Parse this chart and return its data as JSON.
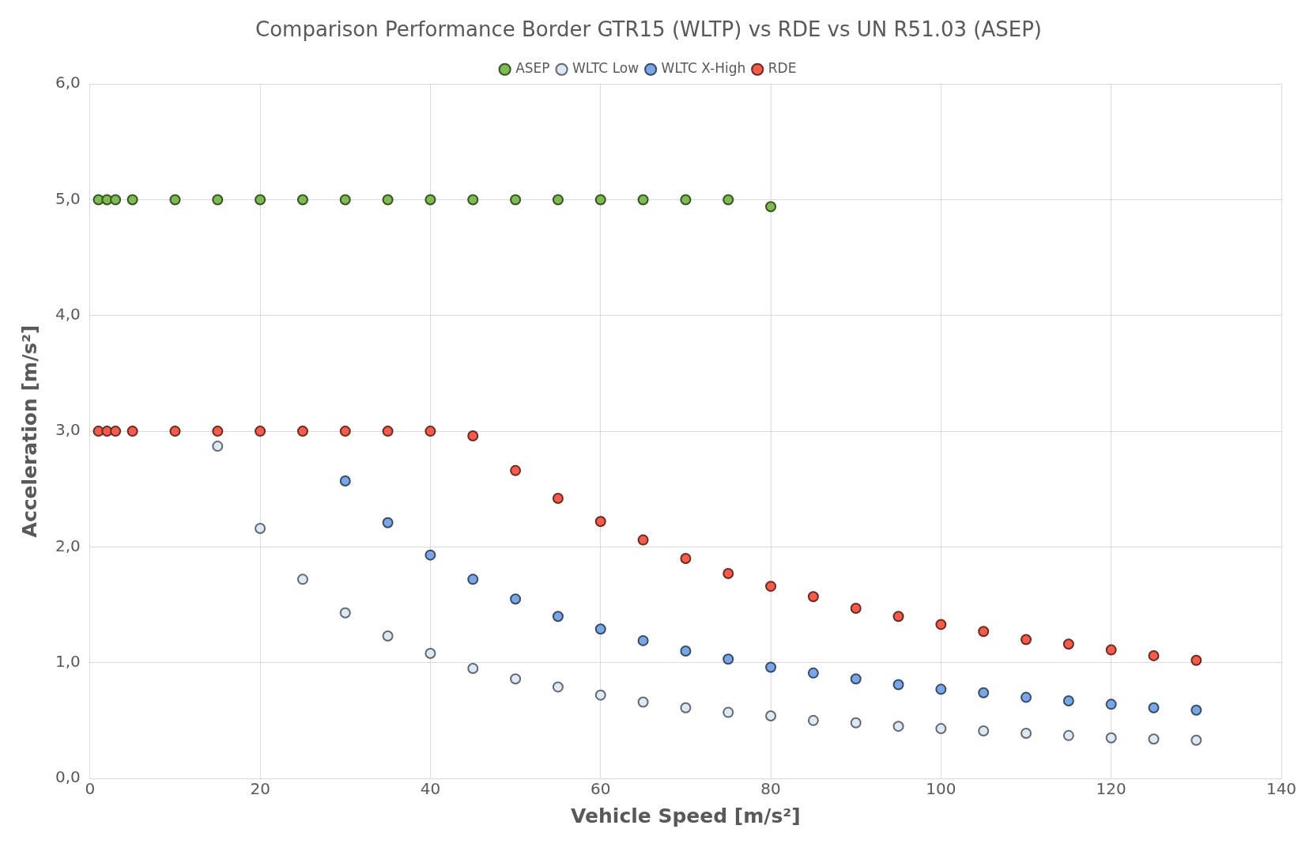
{
  "chart_data": {
    "type": "scatter",
    "title": "Comparison Performance Border GTR15 (WLTP) vs RDE vs UN R51.03 (ASEP)",
    "xlabel": "Vehicle Speed [m/s²]",
    "ylabel": "Acceleration [m/s²]",
    "xlim": [
      0,
      140
    ],
    "xticks": [
      0,
      20,
      40,
      60,
      80,
      100,
      120,
      140
    ],
    "ylim": [
      0,
      6
    ],
    "yticks": [
      {
        "value": 0,
        "label": "0,0"
      },
      {
        "value": 1,
        "label": "1,0"
      },
      {
        "value": 2,
        "label": "2,0"
      },
      {
        "value": 3,
        "label": "3,0"
      },
      {
        "value": 4,
        "label": "4,0"
      },
      {
        "value": 5,
        "label": "5,0"
      },
      {
        "value": 6,
        "label": "6,0"
      }
    ],
    "grid": true,
    "legend": "top",
    "marker": "circle",
    "series": [
      {
        "name": "ASEP",
        "color": "#7dba52",
        "x": [
          1,
          2,
          3,
          5,
          10,
          15,
          20,
          25,
          30,
          35,
          40,
          45,
          50,
          55,
          60,
          65,
          70,
          75,
          80
        ],
        "values": [
          5,
          5,
          5,
          5,
          5,
          5,
          5,
          5,
          5,
          5,
          5,
          5,
          5,
          5,
          5,
          5,
          5,
          5,
          4.94
        ]
      },
      {
        "name": "WLTC Low",
        "color": "#dde8f5",
        "x": [
          15,
          20,
          25,
          30,
          35,
          40,
          45,
          50,
          55,
          60,
          65,
          70,
          75,
          80,
          85,
          90,
          95,
          100,
          105,
          110,
          115,
          120,
          125,
          130
        ],
        "values": [
          2.87,
          2.16,
          1.72,
          1.43,
          1.23,
          1.08,
          0.95,
          0.86,
          0.79,
          0.72,
          0.66,
          0.61,
          0.57,
          0.54,
          0.5,
          0.48,
          0.45,
          0.43,
          0.41,
          0.39,
          0.37,
          0.35,
          0.34,
          0.33
        ]
      },
      {
        "name": "WLTC X-High",
        "color": "#7aa6e6",
        "x": [
          30,
          35,
          40,
          45,
          50,
          55,
          60,
          65,
          70,
          75,
          80,
          85,
          90,
          95,
          100,
          105,
          110,
          115,
          120,
          125,
          130
        ],
        "values": [
          2.57,
          2.21,
          1.93,
          1.72,
          1.55,
          1.4,
          1.29,
          1.19,
          1.1,
          1.03,
          0.96,
          0.91,
          0.86,
          0.81,
          0.77,
          0.74,
          0.7,
          0.67,
          0.64,
          0.61,
          0.59
        ]
      },
      {
        "name": "RDE",
        "color": "#f25c4c",
        "x": [
          1,
          2,
          3,
          5,
          10,
          15,
          20,
          25,
          30,
          35,
          40,
          45,
          50,
          55,
          60,
          65,
          70,
          75,
          80,
          85,
          90,
          95,
          100,
          105,
          110,
          115,
          120,
          125,
          130
        ],
        "values": [
          3,
          3,
          3,
          3,
          3,
          3,
          3,
          3,
          3,
          3,
          3,
          2.96,
          2.66,
          2.42,
          2.22,
          2.06,
          1.9,
          1.77,
          1.66,
          1.57,
          1.47,
          1.4,
          1.33,
          1.27,
          1.2,
          1.16,
          1.11,
          1.06,
          1.02
        ]
      }
    ]
  }
}
